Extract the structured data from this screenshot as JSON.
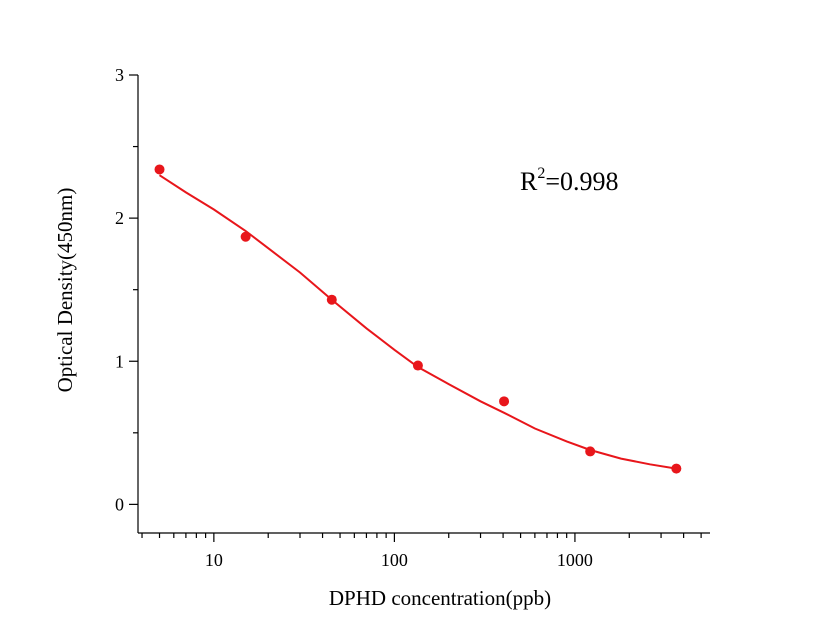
{
  "chart_data": {
    "type": "scatter",
    "xlabel": "DPHD concentration(ppb)",
    "ylabel": "Optical Density(450nm)",
    "x_scale": "log",
    "xlim": [
      3.8,
      5600
    ],
    "ylim": [
      -0.2,
      3
    ],
    "x_ticks": [
      10,
      100,
      1000
    ],
    "x_tick_labels": [
      "10",
      "100",
      "1000"
    ],
    "y_ticks": [
      0,
      1,
      2,
      3
    ],
    "y_tick_labels": [
      "0",
      "1",
      "2",
      "3"
    ],
    "grid": false,
    "annotation": {
      "base": "R",
      "sup": "2",
      "rest": "=0.998"
    },
    "colors": {
      "series": "#e8161b",
      "axis": "#000000"
    },
    "series": [
      {
        "points": [
          {
            "x": 5,
            "y": 2.34
          },
          {
            "x": 15,
            "y": 1.87
          },
          {
            "x": 45,
            "y": 1.43
          },
          {
            "x": 135,
            "y": 0.97
          },
          {
            "x": 405,
            "y": 0.72
          },
          {
            "x": 1215,
            "y": 0.37
          },
          {
            "x": 3645,
            "y": 0.25
          }
        ],
        "fit_curve": [
          {
            "x": 5,
            "y": 2.3
          },
          {
            "x": 7,
            "y": 2.18
          },
          {
            "x": 10,
            "y": 2.06
          },
          {
            "x": 15,
            "y": 1.91
          },
          {
            "x": 20,
            "y": 1.79
          },
          {
            "x": 30,
            "y": 1.62
          },
          {
            "x": 45,
            "y": 1.43
          },
          {
            "x": 70,
            "y": 1.23
          },
          {
            "x": 100,
            "y": 1.08
          },
          {
            "x": 135,
            "y": 0.96
          },
          {
            "x": 200,
            "y": 0.84
          },
          {
            "x": 300,
            "y": 0.72
          },
          {
            "x": 405,
            "y": 0.64
          },
          {
            "x": 600,
            "y": 0.53
          },
          {
            "x": 900,
            "y": 0.44
          },
          {
            "x": 1215,
            "y": 0.38
          },
          {
            "x": 1800,
            "y": 0.32
          },
          {
            "x": 2600,
            "y": 0.28
          },
          {
            "x": 3645,
            "y": 0.25
          }
        ]
      }
    ]
  }
}
